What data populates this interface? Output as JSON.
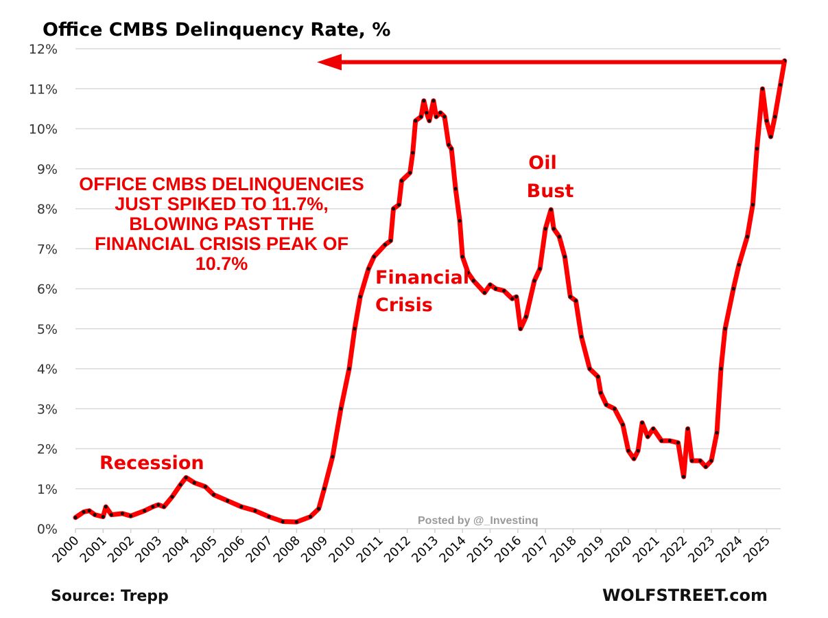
{
  "chart_data": {
    "type": "line",
    "title": "Office CMBS Delinquency Rate, %",
    "xlabel": "",
    "ylabel": "",
    "ylim": [
      0,
      12
    ],
    "xlim": [
      2000,
      2025.65
    ],
    "grid": true,
    "y_ticks": [
      "0%",
      "1%",
      "2%",
      "3%",
      "4%",
      "5%",
      "6%",
      "7%",
      "8%",
      "9%",
      "10%",
      "11%",
      "12%"
    ],
    "x_ticks": [
      "2000",
      "2001",
      "2002",
      "2003",
      "2004",
      "2005",
      "2006",
      "2007",
      "2008",
      "2009",
      "2010",
      "2011",
      "2012",
      "2013",
      "2014",
      "2015",
      "2016",
      "2017",
      "2018",
      "2019",
      "2020",
      "2021",
      "2022",
      "2023",
      "2024",
      "2025"
    ],
    "series": [
      {
        "name": "Office CMBS Delinquency Rate",
        "color": "#ff0000",
        "marker_color": "#111111",
        "x": [
          2000.0,
          2000.3,
          2000.5,
          2000.7,
          2001.0,
          2001.1,
          2001.3,
          2001.7,
          2002.0,
          2002.5,
          2002.8,
          2003.0,
          2003.2,
          2003.5,
          2003.8,
          2004.0,
          2004.3,
          2004.7,
          2005.0,
          2005.5,
          2006.0,
          2006.5,
          2007.0,
          2007.5,
          2008.0,
          2008.5,
          2008.8,
          2009.0,
          2009.3,
          2009.6,
          2009.9,
          2010.1,
          2010.3,
          2010.6,
          2010.8,
          2011.2,
          2011.4,
          2011.5,
          2011.7,
          2011.8,
          2012.1,
          2012.2,
          2012.3,
          2012.5,
          2012.6,
          2012.7,
          2012.8,
          2012.95,
          2013.05,
          2013.2,
          2013.35,
          2013.5,
          2013.6,
          2013.75,
          2013.9,
          2014.0,
          2014.2,
          2014.4,
          2014.8,
          2015.0,
          2015.2,
          2015.5,
          2015.8,
          2015.95,
          2016.1,
          2016.3,
          2016.6,
          2016.8,
          2017.0,
          2017.2,
          2017.3,
          2017.5,
          2017.7,
          2017.9,
          2018.1,
          2018.3,
          2018.6,
          2018.9,
          2019.0,
          2019.2,
          2019.5,
          2019.8,
          2020.0,
          2020.2,
          2020.35,
          2020.5,
          2020.7,
          2020.9,
          2021.2,
          2021.5,
          2021.8,
          2022.0,
          2022.15,
          2022.3,
          2022.6,
          2022.8,
          2023.0,
          2023.2,
          2023.35,
          2023.5,
          2023.8,
          2024.0,
          2024.3,
          2024.5,
          2024.65,
          2024.85,
          2025.0,
          2025.15,
          2025.3,
          2025.5,
          2025.65
        ],
        "values": [
          0.28,
          0.42,
          0.45,
          0.35,
          0.3,
          0.55,
          0.35,
          0.38,
          0.32,
          0.45,
          0.55,
          0.6,
          0.55,
          0.8,
          1.1,
          1.28,
          1.15,
          1.05,
          0.85,
          0.7,
          0.55,
          0.45,
          0.3,
          0.18,
          0.17,
          0.3,
          0.5,
          1.0,
          1.8,
          3.0,
          4.0,
          5.0,
          5.8,
          6.5,
          6.8,
          7.1,
          7.2,
          8.0,
          8.1,
          8.7,
          8.9,
          9.4,
          10.2,
          10.3,
          10.7,
          10.4,
          10.2,
          10.7,
          10.3,
          10.4,
          10.3,
          9.6,
          9.5,
          8.5,
          7.7,
          6.8,
          6.4,
          6.2,
          5.9,
          6.1,
          6.0,
          5.95,
          5.75,
          5.8,
          5.0,
          5.3,
          6.2,
          6.5,
          7.5,
          7.98,
          7.5,
          7.3,
          6.8,
          5.8,
          5.7,
          4.8,
          4.0,
          3.8,
          3.4,
          3.1,
          3.0,
          2.6,
          1.95,
          1.75,
          1.95,
          2.65,
          2.3,
          2.5,
          2.2,
          2.2,
          2.15,
          1.3,
          2.5,
          1.7,
          1.7,
          1.55,
          1.7,
          2.4,
          4.0,
          5.0,
          6.0,
          6.6,
          7.3,
          8.1,
          9.5,
          11.0,
          10.2,
          9.8,
          10.3,
          11.1,
          11.7
        ]
      }
    ],
    "annotations": [
      {
        "id": "headline",
        "lines": [
          "OFFICE CMBS DELINQUENCIES",
          "JUST SPIKED TO 11.7%,",
          "BLOWING PAST THE",
          "FINANCIAL CRISIS PEAK OF",
          "10.7%"
        ],
        "color": "#ee0000"
      },
      {
        "id": "recession",
        "lines": [
          "Recession"
        ],
        "color": "#ee0000"
      },
      {
        "id": "financial-crisis",
        "lines": [
          "Financial",
          "Crisis"
        ],
        "color": "#ee0000"
      },
      {
        "id": "oil-bust",
        "lines": [
          "Oil",
          "Bust"
        ],
        "color": "#ee0000"
      },
      {
        "id": "arrow",
        "description": "Horizontal red arrow pointing left from the latest value of 11.7% back to 2009",
        "color": "#ee0000",
        "value": 11.7
      }
    ]
  },
  "footer": {
    "source": "Source: Trepp",
    "brand": "WOLFSTREET.com",
    "watermark": "Posted by @_Investinq"
  }
}
